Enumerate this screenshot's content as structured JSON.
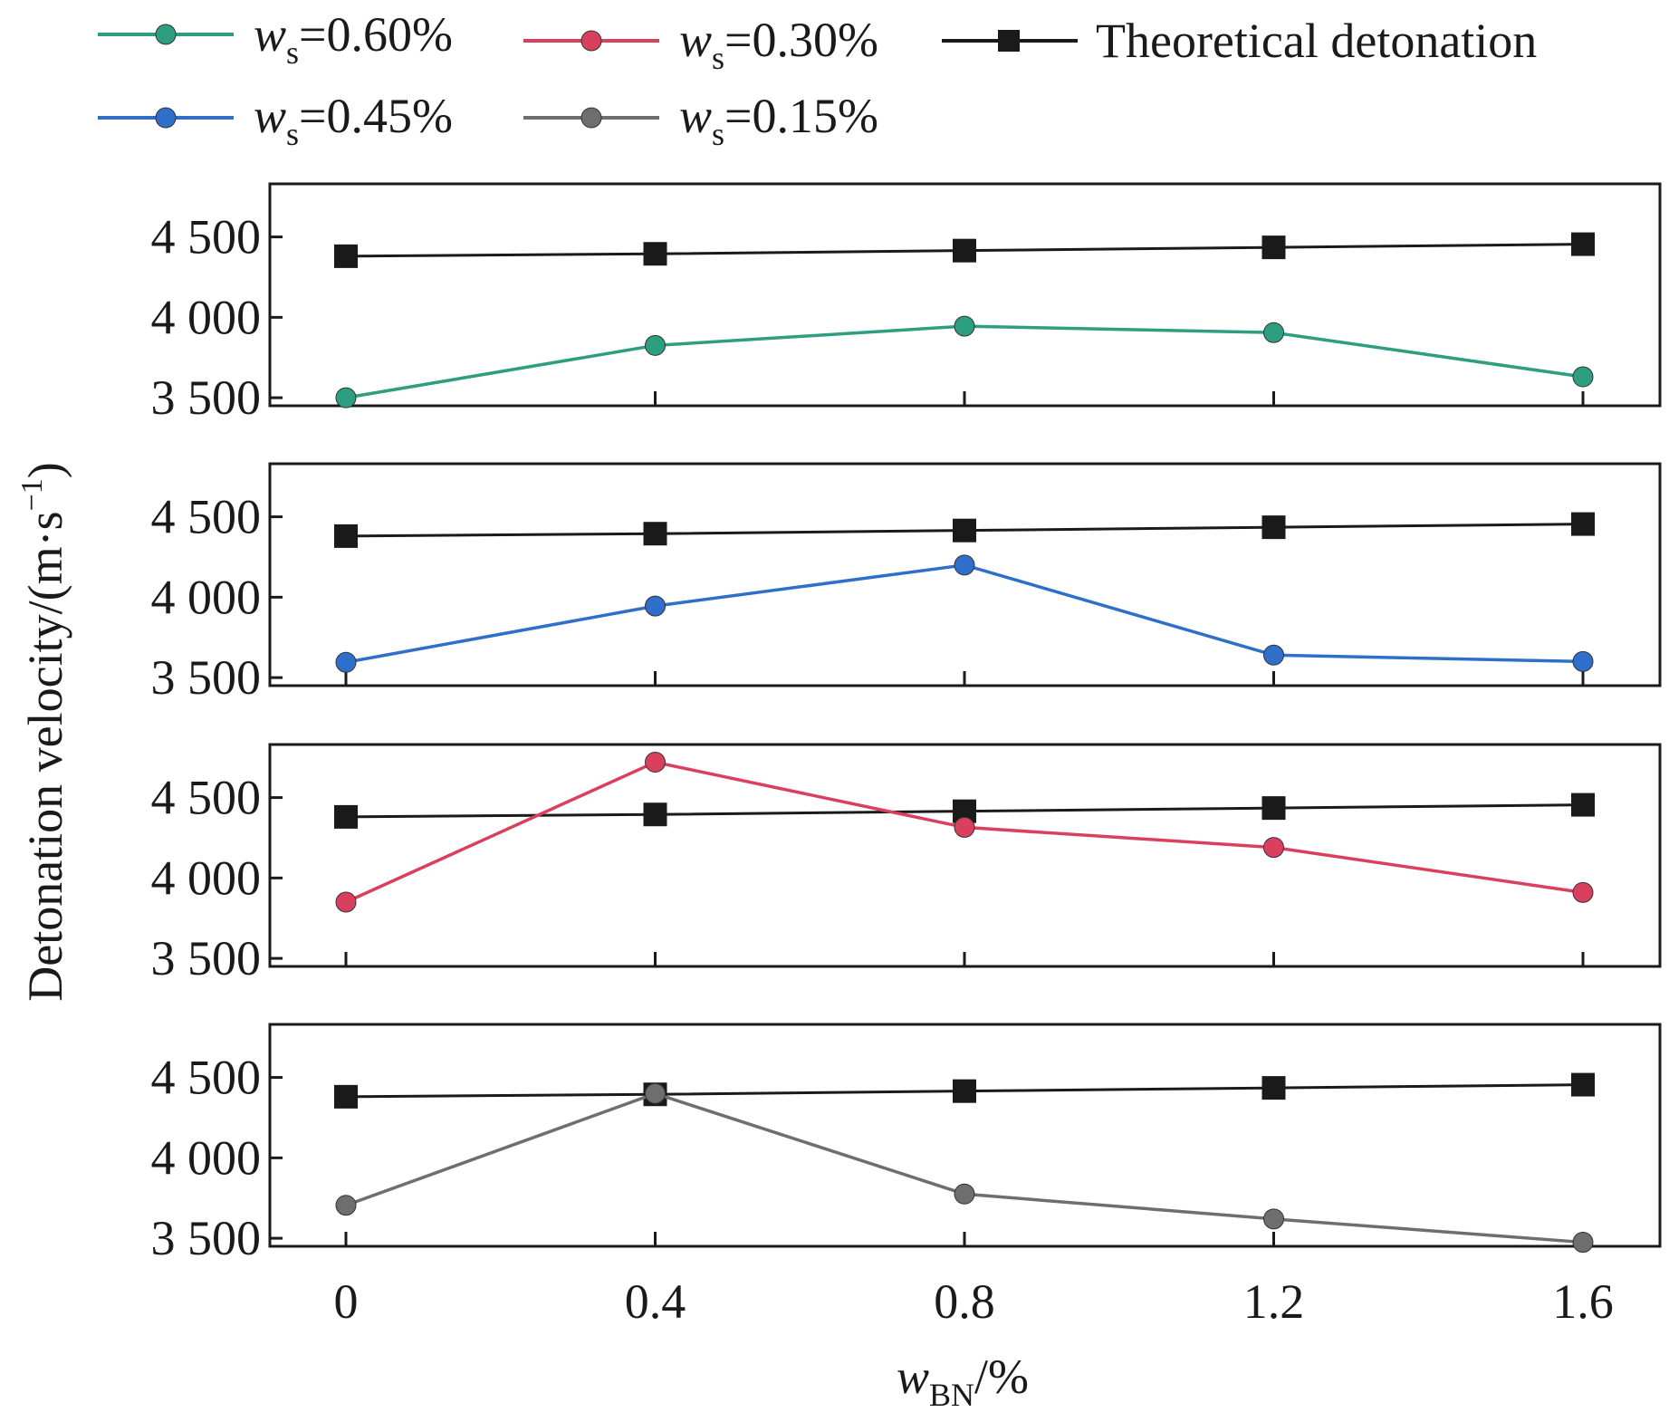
{
  "legend": [
    {
      "prefix": "w",
      "sub": "s",
      "value": "=0.60%",
      "color": "#2e9e80",
      "marker": "circle"
    },
    {
      "prefix": "w",
      "sub": "s",
      "value": "=0.30%",
      "color": "#d9405e",
      "marker": "circle"
    },
    {
      "prefix": "",
      "sub": "",
      "value": "Theoretical detonation",
      "color": "#1a1a1a",
      "marker": "square"
    },
    {
      "prefix": "w",
      "sub": "s",
      "value": "=0.45%",
      "color": "#2f6fc9",
      "marker": "circle"
    },
    {
      "prefix": "w",
      "sub": "s",
      "value": "=0.15%",
      "color": "#6e6e6e",
      "marker": "circle"
    }
  ],
  "chart_data": {
    "type": "line",
    "layout": "stacked-panels",
    "x": [
      0,
      0.4,
      0.8,
      1.2,
      1.6
    ],
    "x_tick_labels": [
      "0",
      "0.4",
      "0.8",
      "1.2",
      "1.6"
    ],
    "xlabel": {
      "main": "w",
      "sub": "BN",
      "suffix": "/%"
    },
    "ylabel": {
      "main": "Detonation velocity/(m·s",
      "sup": "−1",
      "suffix": ")"
    },
    "ylim": [
      3450,
      4830
    ],
    "y_ticks": [
      3500,
      4000,
      4500
    ],
    "y_tick_labels": [
      "3 500",
      "4 000",
      "4 500"
    ],
    "theoretical": {
      "name": "Theoretical detonation",
      "color": "#1a1a1a",
      "values": [
        4380,
        4395,
        4415,
        4435,
        4455
      ]
    },
    "panels": [
      {
        "name": "ws=0.60%",
        "color": "#2e9e80",
        "values": [
          3500,
          3825,
          3945,
          3905,
          3630
        ]
      },
      {
        "name": "ws=0.45%",
        "color": "#2f6fc9",
        "values": [
          3595,
          3945,
          4200,
          3640,
          3600
        ]
      },
      {
        "name": "ws=0.30%",
        "color": "#d9405e",
        "values": [
          3850,
          4720,
          4315,
          4190,
          3910
        ]
      },
      {
        "name": "ws=0.15%",
        "color": "#6e6e6e",
        "values": [
          3705,
          4400,
          3775,
          3620,
          3475
        ]
      }
    ]
  }
}
